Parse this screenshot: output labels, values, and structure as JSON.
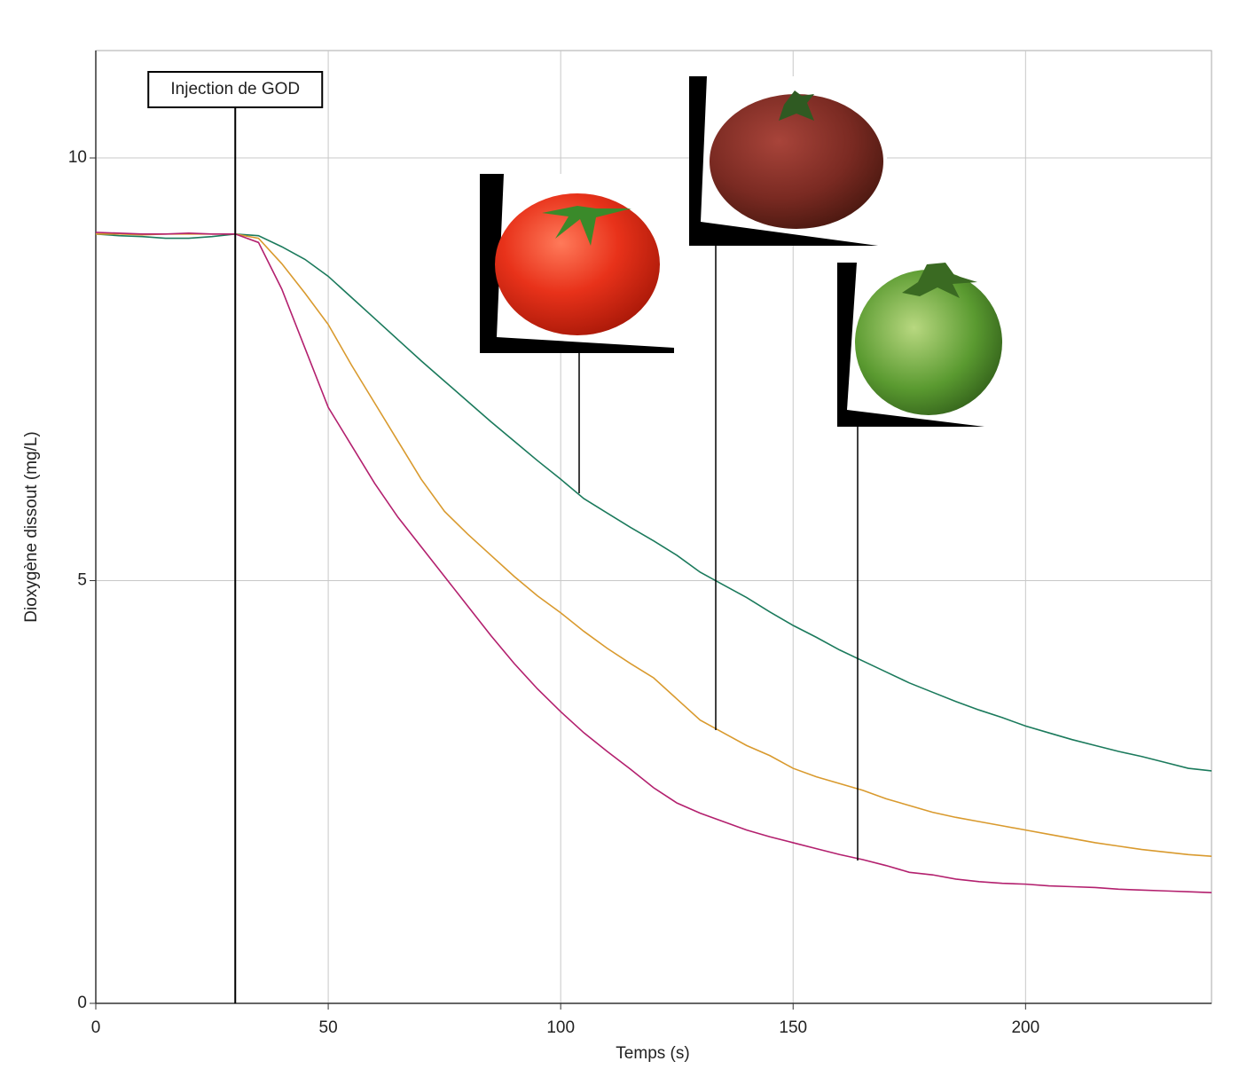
{
  "chart_data": {
    "type": "line",
    "xlabel": "Temps (s)",
    "ylabel": "Dioxygène dissout (mg/L)",
    "x": [
      0,
      5,
      10,
      15,
      20,
      25,
      30,
      35,
      40,
      45,
      50,
      55,
      60,
      65,
      70,
      75,
      80,
      85,
      90,
      95,
      100,
      105,
      110,
      115,
      120,
      125,
      130,
      135,
      140,
      145,
      150,
      155,
      160,
      165,
      170,
      175,
      180,
      185,
      190,
      195,
      200,
      205,
      210,
      215,
      220,
      225,
      230,
      235,
      240
    ],
    "series": [
      {
        "color": "#1b7a5c",
        "values": [
          9.1,
          9.08,
          9.07,
          9.05,
          9.05,
          9.07,
          9.1,
          9.08,
          8.95,
          8.8,
          8.6,
          8.35,
          8.1,
          7.85,
          7.6,
          7.36,
          7.12,
          6.88,
          6.65,
          6.42,
          6.2,
          5.97,
          5.8,
          5.63,
          5.47,
          5.3,
          5.1,
          4.95,
          4.8,
          4.63,
          4.47,
          4.33,
          4.18,
          4.05,
          3.92,
          3.79,
          3.68,
          3.57,
          3.47,
          3.38,
          3.28,
          3.2,
          3.12,
          3.05,
          2.98,
          2.92,
          2.85,
          2.78,
          2.75
        ]
      },
      {
        "color": "#d99a2e",
        "values": [
          9.1,
          9.1,
          9.09,
          9.1,
          9.1,
          9.1,
          9.1,
          9.05,
          8.75,
          8.4,
          8.03,
          7.55,
          7.1,
          6.65,
          6.2,
          5.82,
          5.55,
          5.3,
          5.05,
          4.82,
          4.62,
          4.4,
          4.2,
          4.02,
          3.85,
          3.6,
          3.35,
          3.2,
          3.05,
          2.93,
          2.78,
          2.68,
          2.6,
          2.52,
          2.42,
          2.34,
          2.26,
          2.2,
          2.15,
          2.1,
          2.05,
          2.0,
          1.95,
          1.9,
          1.86,
          1.82,
          1.79,
          1.76,
          1.74
        ]
      },
      {
        "color": "#b3206e",
        "values": [
          9.12,
          9.11,
          9.1,
          9.1,
          9.11,
          9.1,
          9.1,
          9.0,
          8.45,
          7.75,
          7.05,
          6.6,
          6.15,
          5.75,
          5.4,
          5.05,
          4.7,
          4.35,
          4.02,
          3.72,
          3.45,
          3.2,
          2.98,
          2.77,
          2.55,
          2.37,
          2.25,
          2.15,
          2.05,
          1.97,
          1.9,
          1.83,
          1.76,
          1.7,
          1.63,
          1.55,
          1.52,
          1.47,
          1.44,
          1.42,
          1.41,
          1.39,
          1.38,
          1.37,
          1.35,
          1.34,
          1.33,
          1.32,
          1.31
        ]
      }
    ],
    "xlim": [
      0,
      240
    ],
    "ylim": [
      0,
      11.27
    ],
    "xticks": [
      0,
      50,
      100,
      150,
      200
    ],
    "yticks": [
      0,
      5,
      10
    ],
    "grid": true,
    "annotations": [
      {
        "text": "Injection de GOD",
        "x": 30
      }
    ]
  }
}
